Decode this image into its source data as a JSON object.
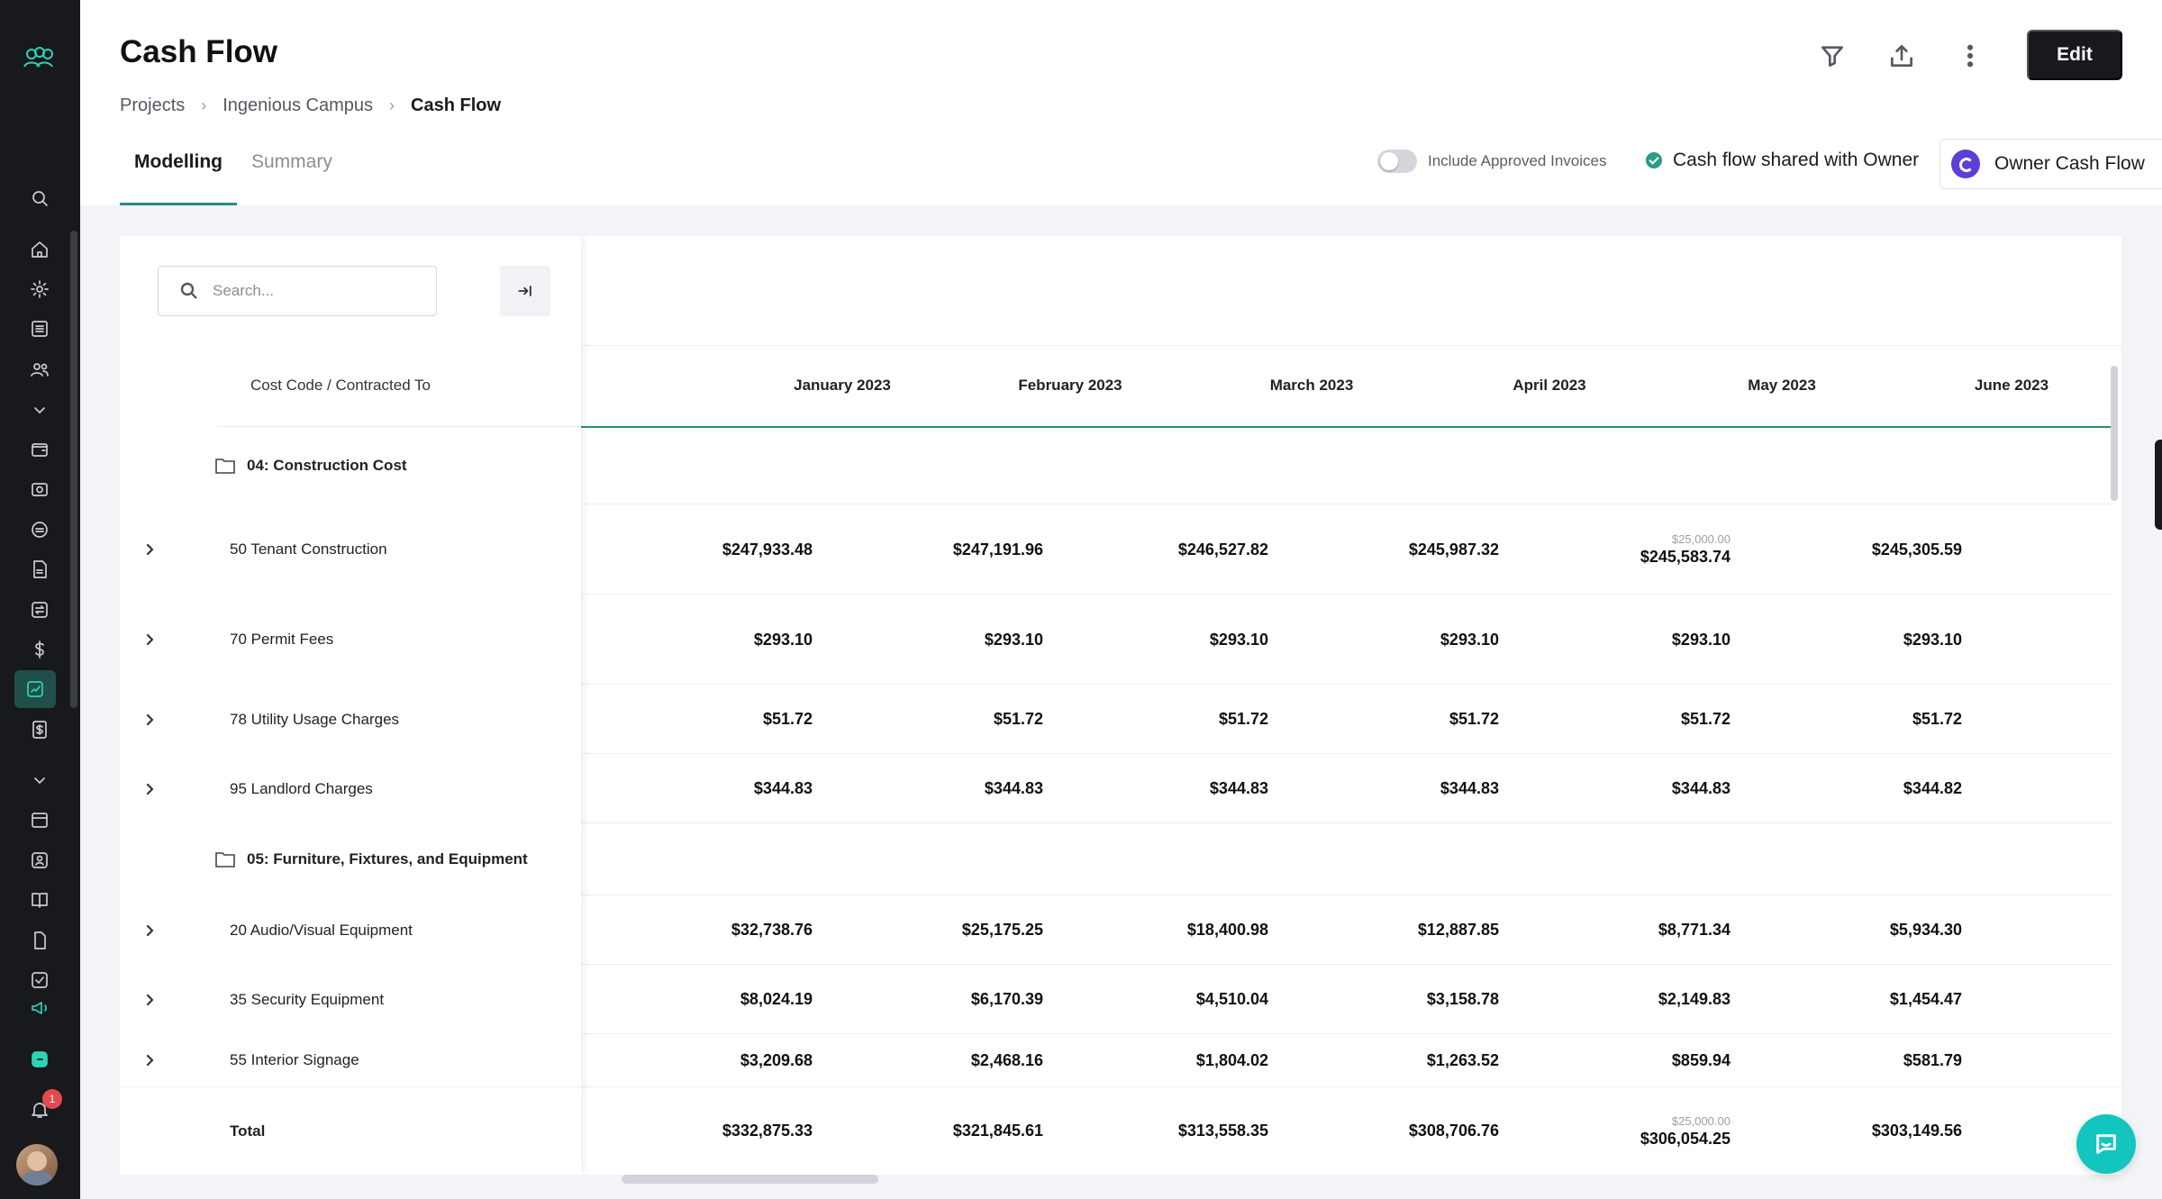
{
  "page": {
    "title": "Cash Flow"
  },
  "breadcrumb": [
    "Projects",
    "Ingenious Campus",
    "Cash Flow"
  ],
  "tabs": [
    {
      "label": "Modelling",
      "active": true
    },
    {
      "label": "Summary",
      "active": false
    }
  ],
  "toolbar": {
    "edit_label": "Edit"
  },
  "options": {
    "include_approved_invoices_label": "Include Approved Invoices",
    "include_approved_invoices_on": false,
    "shared_label": "Cash flow shared with Owner",
    "view_select_value": "Owner Cash Flow"
  },
  "search": {
    "placeholder": "Search..."
  },
  "table": {
    "left_header": "Cost Code / Contracted To",
    "months": [
      "January 2023",
      "February 2023",
      "March 2023",
      "April 2023",
      "May 2023",
      "June 2023"
    ],
    "rows": [
      {
        "type": "group",
        "label": "04: Construction Cost",
        "values": []
      },
      {
        "type": "item",
        "label": "50 Tenant Construction",
        "values": [
          "$247,933.48",
          "$247,191.96",
          "$246,527.82",
          "$245,987.32",
          "$245,583.74",
          "$245,305.59"
        ],
        "subvalues": [
          "",
          "",
          "",
          "",
          "$25,000.00",
          ""
        ]
      },
      {
        "type": "item",
        "label": "70 Permit Fees",
        "values": [
          "$293.10",
          "$293.10",
          "$293.10",
          "$293.10",
          "$293.10",
          "$293.10"
        ]
      },
      {
        "type": "item",
        "label": "78 Utility Usage Charges",
        "values": [
          "$51.72",
          "$51.72",
          "$51.72",
          "$51.72",
          "$51.72",
          "$51.72"
        ]
      },
      {
        "type": "item",
        "label": "95 Landlord Charges",
        "values": [
          "$344.83",
          "$344.83",
          "$344.83",
          "$344.83",
          "$344.83",
          "$344.82"
        ]
      },
      {
        "type": "group",
        "label": "05: Furniture, Fixtures, and Equipment",
        "values": []
      },
      {
        "type": "item",
        "label": "20 Audio/Visual Equipment",
        "values": [
          "$32,738.76",
          "$25,175.25",
          "$18,400.98",
          "$12,887.85",
          "$8,771.34",
          "$5,934.30"
        ]
      },
      {
        "type": "item",
        "label": "35 Security Equipment",
        "values": [
          "$8,024.19",
          "$6,170.39",
          "$4,510.04",
          "$3,158.78",
          "$2,149.83",
          "$1,454.47"
        ]
      },
      {
        "type": "item",
        "label": "55 Interior Signage",
        "values": [
          "$3,209.68",
          "$2,468.16",
          "$1,804.02",
          "$1,263.52",
          "$859.94",
          "$581.79"
        ]
      }
    ],
    "total": {
      "label": "Total",
      "values": [
        "$332,875.33",
        "$321,845.61",
        "$313,558.35",
        "$308,706.76",
        "$306,054.25",
        "$303,149.56"
      ],
      "subvalues": [
        "",
        "",
        "",
        "",
        "$25,000.00",
        ""
      ]
    }
  },
  "notifications": {
    "count": "1"
  },
  "colors": {
    "accent": "#2b8c7e",
    "nav_bg": "#17191d",
    "chat": "#12c6bf",
    "brand_pip": "#5b3fd6"
  }
}
